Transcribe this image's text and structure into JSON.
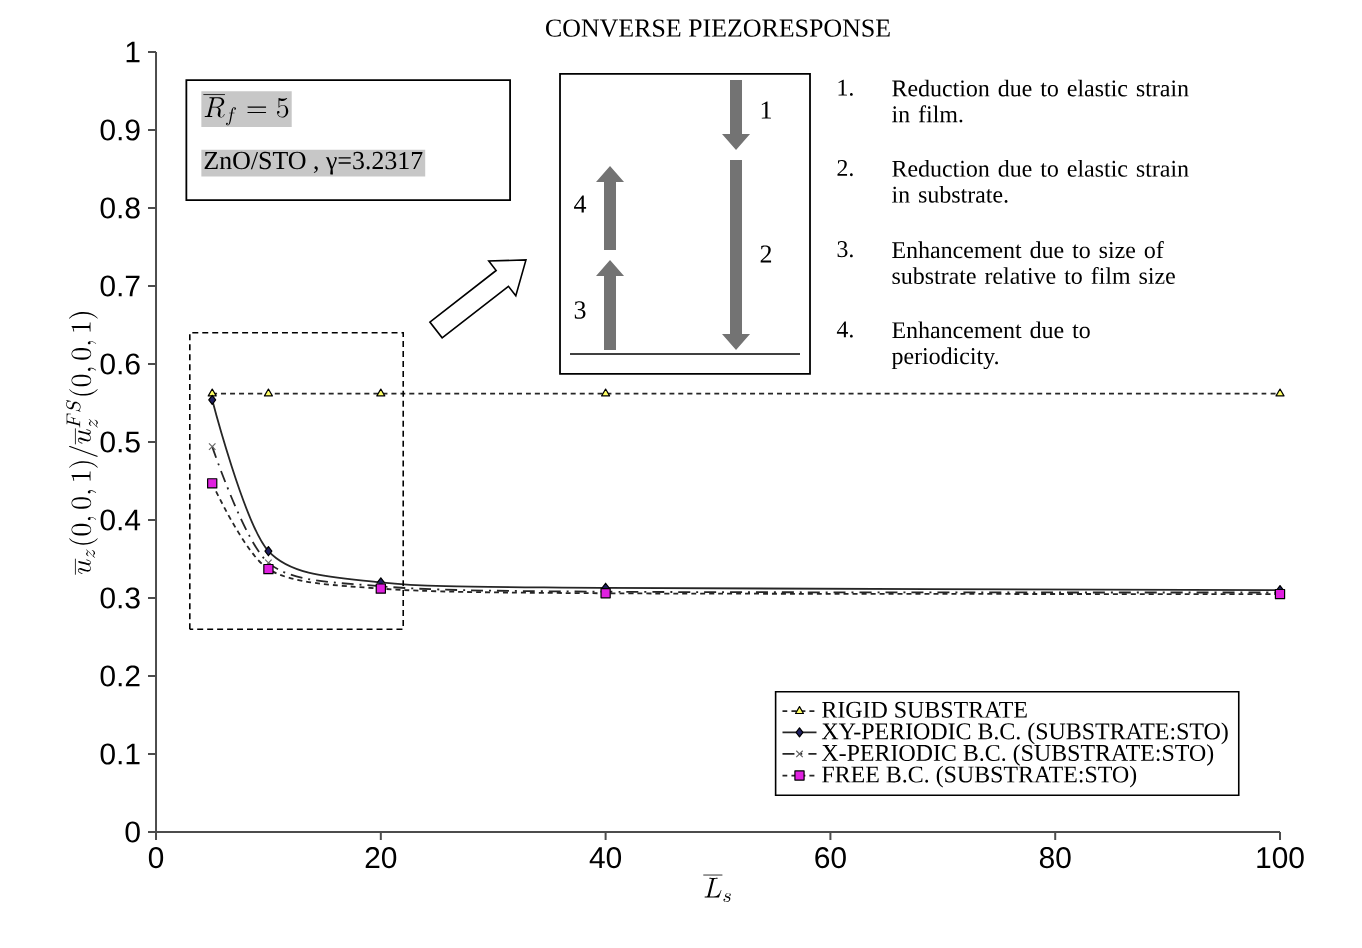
{
  "chart_data": {
    "type": "line",
    "title": "CONVERSE PIEZORESPONSE",
    "xlabel": "\\overline{L}_s",
    "ylabel": "\\overline{u}_z(0,0,1)/\\overline{u}_z^{FS}(0,0,1)",
    "x": [
      5,
      10,
      20,
      40,
      100
    ],
    "series": [
      {
        "name": "RIGID SUBSTRATE",
        "color": "#ffff66",
        "marker": "triangle",
        "line_style": "dotted",
        "values": [
          0.562,
          0.562,
          0.562,
          0.562,
          0.562
        ]
      },
      {
        "name": "XY-PERIODIC B.C. (SUBSTRATE:STO)",
        "color": "#1f1f5f",
        "marker": "diamond",
        "line_style": "solid",
        "values": [
          0.554,
          0.36,
          0.32,
          0.313,
          0.31
        ]
      },
      {
        "name": "X-PERIODIC B.C. (SUBSTRATE:STO)",
        "color": "#666666",
        "marker": "cross",
        "line_style": "dashed",
        "values": [
          0.494,
          0.345,
          0.315,
          0.308,
          0.307
        ]
      },
      {
        "name": "FREE B.C. (SUBSTRATE:STO)",
        "color": "#e020e0",
        "marker": "square",
        "line_style": "dotted",
        "values": [
          0.447,
          0.337,
          0.312,
          0.306,
          0.305
        ]
      }
    ],
    "xlim": [
      0,
      100
    ],
    "xticks": [
      0,
      20,
      40,
      60,
      80,
      100
    ],
    "ylim": [
      0,
      1
    ],
    "yticks": [
      0,
      0.1,
      0.2,
      0.3,
      0.4,
      0.5,
      0.6,
      0.7,
      0.8,
      0.9,
      1
    ],
    "legend": "bottom right",
    "grid": false,
    "annotations": [
      "\\overline{R}_f = 5",
      "ZnO/STO   ,   γ=3.2317",
      "1.",
      "Reduction due to elastic strain in film.",
      "2.",
      "Reduction due to elastic strain in substrate.",
      "3.",
      "Enhancement due to size of substrate relative to film size",
      "4.",
      "Enhancement due to periodicity.",
      "1",
      "2",
      "3",
      "4"
    ]
  }
}
